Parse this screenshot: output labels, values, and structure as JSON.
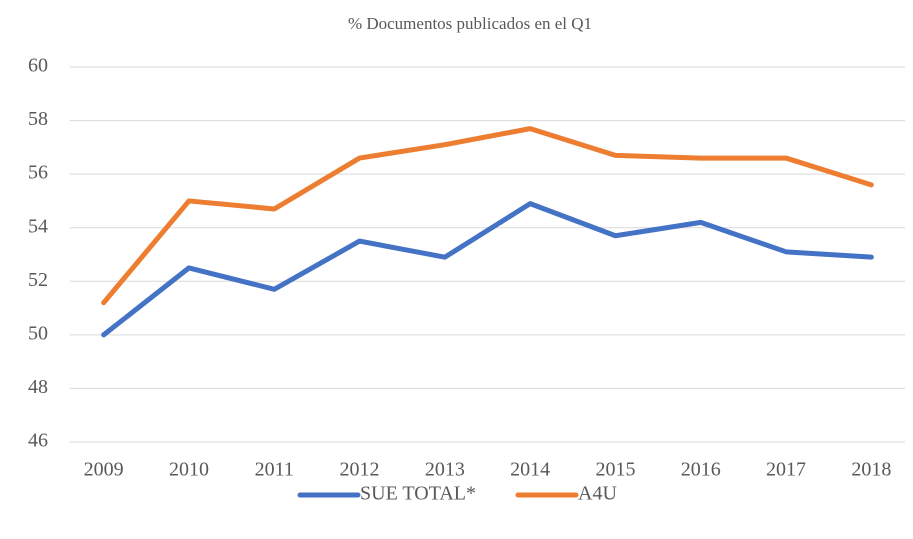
{
  "chart_data": {
    "type": "line",
    "title": "% Documentos publicados en el Q1",
    "categories": [
      "2009",
      "2010",
      "2011",
      "2012",
      "2013",
      "2014",
      "2015",
      "2016",
      "2017",
      "2018"
    ],
    "series": [
      {
        "name": "SUE TOTAL*",
        "color": "#4472c4",
        "values": [
          50.0,
          52.5,
          51.7,
          53.5,
          52.9,
          54.9,
          53.7,
          54.2,
          53.1,
          52.9
        ]
      },
      {
        "name": "A4U",
        "color": "#ed7d31",
        "values": [
          51.2,
          55.0,
          54.7,
          56.6,
          57.1,
          57.7,
          56.7,
          56.6,
          56.6,
          55.6
        ]
      }
    ],
    "ylim": [
      46,
      60
    ],
    "yticks": [
      46,
      48,
      50,
      52,
      54,
      56,
      58,
      60
    ],
    "grid": true,
    "legend": "bottom"
  }
}
